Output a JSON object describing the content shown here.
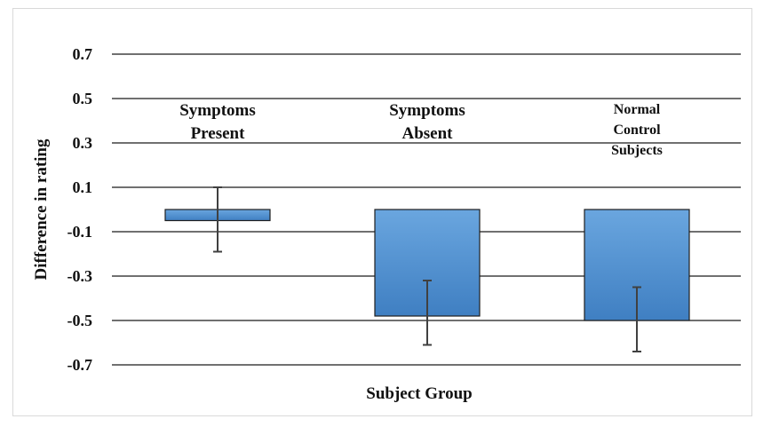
{
  "chart_data": {
    "type": "bar",
    "xlabel": "Subject Group",
    "ylabel": "Difference in rating",
    "ylim": [
      -0.7,
      0.7
    ],
    "yticks": [
      "0.7",
      "0.5",
      "0.3",
      "0.1",
      "-0.1",
      "-0.3",
      "-0.5",
      "-0.7"
    ],
    "categories": [
      {
        "lines": [
          "Symptoms",
          "Present"
        ]
      },
      {
        "lines": [
          "Symptoms",
          "Absent"
        ]
      },
      {
        "lines": [
          "Normal",
          "Control",
          "Subjects"
        ]
      }
    ],
    "values": [
      -0.05,
      -0.48,
      -0.5
    ],
    "error_low": [
      -0.19,
      -0.61,
      -0.64
    ],
    "error_high": [
      0.1,
      -0.32,
      -0.35
    ],
    "grid": true,
    "bar_color": "#5b9bd5",
    "bar_edge": "#1f1f1f"
  }
}
